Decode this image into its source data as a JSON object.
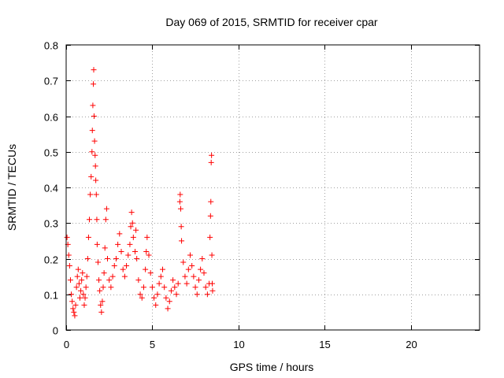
{
  "chart_data": {
    "type": "scatter",
    "title": "Day 069 of 2015, SRMTID for receiver cpar",
    "xlabel": "GPS time / hours",
    "ylabel": "SRMTID / TECUs",
    "xlim": [
      0,
      24
    ],
    "ylim": [
      0,
      0.8
    ],
    "xticks": [
      0,
      5,
      10,
      15,
      20
    ],
    "xtick_labels": [
      "0",
      "5",
      "10",
      "15",
      "20"
    ],
    "yticks": [
      0,
      0.1,
      0.2,
      0.3,
      0.4,
      0.5,
      0.6,
      0.7,
      0.8
    ],
    "ytick_labels": [
      "0",
      "0.1",
      "0.2",
      "0.3",
      "0.4",
      "0.5",
      "0.6",
      "0.7",
      "0.8"
    ],
    "grid": true,
    "marker": "+",
    "color": "#ff0000",
    "series": [
      {
        "name": "cpar",
        "points": [
          [
            0.05,
            0.26
          ],
          [
            0.1,
            0.24
          ],
          [
            0.15,
            0.21
          ],
          [
            0.2,
            0.18
          ],
          [
            0.25,
            0.14
          ],
          [
            0.3,
            0.1
          ],
          [
            0.35,
            0.08
          ],
          [
            0.4,
            0.06
          ],
          [
            0.45,
            0.05
          ],
          [
            0.5,
            0.04
          ],
          [
            0.55,
            0.07
          ],
          [
            0.6,
            0.12
          ],
          [
            0.65,
            0.15
          ],
          [
            0.7,
            0.17
          ],
          [
            0.75,
            0.13
          ],
          [
            0.8,
            0.09
          ],
          [
            0.85,
            0.11
          ],
          [
            0.9,
            0.14
          ],
          [
            0.95,
            0.16
          ],
          [
            1.0,
            0.1
          ],
          [
            1.05,
            0.07
          ],
          [
            1.1,
            0.09
          ],
          [
            1.15,
            0.12
          ],
          [
            1.2,
            0.15
          ],
          [
            1.25,
            0.2
          ],
          [
            1.3,
            0.26
          ],
          [
            1.35,
            0.31
          ],
          [
            1.4,
            0.38
          ],
          [
            1.45,
            0.43
          ],
          [
            1.5,
            0.5
          ],
          [
            1.52,
            0.56
          ],
          [
            1.55,
            0.63
          ],
          [
            1.58,
            0.69
          ],
          [
            1.6,
            0.73
          ],
          [
            1.62,
            0.6
          ],
          [
            1.65,
            0.53
          ],
          [
            1.68,
            0.49
          ],
          [
            1.7,
            0.46
          ],
          [
            1.72,
            0.42
          ],
          [
            1.75,
            0.38
          ],
          [
            1.78,
            0.31
          ],
          [
            1.8,
            0.24
          ],
          [
            1.85,
            0.19
          ],
          [
            1.9,
            0.14
          ],
          [
            1.95,
            0.11
          ],
          [
            2.0,
            0.07
          ],
          [
            2.05,
            0.05
          ],
          [
            2.1,
            0.08
          ],
          [
            2.15,
            0.12
          ],
          [
            2.2,
            0.16
          ],
          [
            2.25,
            0.23
          ],
          [
            2.3,
            0.31
          ],
          [
            2.35,
            0.34
          ],
          [
            2.4,
            0.2
          ],
          [
            2.5,
            0.14
          ],
          [
            2.6,
            0.12
          ],
          [
            2.7,
            0.15
          ],
          [
            2.8,
            0.18
          ],
          [
            2.9,
            0.2
          ],
          [
            3.0,
            0.24
          ],
          [
            3.1,
            0.27
          ],
          [
            3.2,
            0.22
          ],
          [
            3.3,
            0.17
          ],
          [
            3.4,
            0.15
          ],
          [
            3.5,
            0.18
          ],
          [
            3.6,
            0.21
          ],
          [
            3.7,
            0.24
          ],
          [
            3.75,
            0.29
          ],
          [
            3.8,
            0.33
          ],
          [
            3.85,
            0.3
          ],
          [
            3.9,
            0.26
          ],
          [
            4.0,
            0.22
          ],
          [
            4.05,
            0.28
          ],
          [
            4.1,
            0.2
          ],
          [
            4.2,
            0.14
          ],
          [
            4.3,
            0.1
          ],
          [
            4.4,
            0.09
          ],
          [
            4.5,
            0.12
          ],
          [
            4.6,
            0.17
          ],
          [
            4.65,
            0.22
          ],
          [
            4.7,
            0.26
          ],
          [
            4.8,
            0.21
          ],
          [
            4.9,
            0.16
          ],
          [
            5.0,
            0.12
          ],
          [
            5.1,
            0.09
          ],
          [
            5.2,
            0.07
          ],
          [
            5.3,
            0.1
          ],
          [
            5.4,
            0.13
          ],
          [
            5.5,
            0.15
          ],
          [
            5.6,
            0.17
          ],
          [
            5.7,
            0.12
          ],
          [
            5.8,
            0.09
          ],
          [
            5.9,
            0.06
          ],
          [
            6.0,
            0.08
          ],
          [
            6.1,
            0.11
          ],
          [
            6.2,
            0.14
          ],
          [
            6.3,
            0.12
          ],
          [
            6.4,
            0.1
          ],
          [
            6.5,
            0.13
          ],
          [
            6.6,
            0.36
          ],
          [
            6.62,
            0.38
          ],
          [
            6.65,
            0.34
          ],
          [
            6.68,
            0.29
          ],
          [
            6.7,
            0.25
          ],
          [
            6.8,
            0.19
          ],
          [
            6.9,
            0.15
          ],
          [
            7.0,
            0.13
          ],
          [
            7.1,
            0.17
          ],
          [
            7.2,
            0.21
          ],
          [
            7.3,
            0.18
          ],
          [
            7.4,
            0.15
          ],
          [
            7.5,
            0.12
          ],
          [
            7.6,
            0.1
          ],
          [
            7.7,
            0.14
          ],
          [
            7.8,
            0.17
          ],
          [
            7.9,
            0.2
          ],
          [
            8.0,
            0.16
          ],
          [
            8.1,
            0.12
          ],
          [
            8.2,
            0.1
          ],
          [
            8.3,
            0.13
          ],
          [
            8.35,
            0.26
          ],
          [
            8.38,
            0.32
          ],
          [
            8.4,
            0.36
          ],
          [
            8.42,
            0.47
          ],
          [
            8.44,
            0.49
          ],
          [
            8.46,
            0.21
          ],
          [
            8.48,
            0.13
          ],
          [
            8.5,
            0.11
          ]
        ]
      }
    ]
  }
}
